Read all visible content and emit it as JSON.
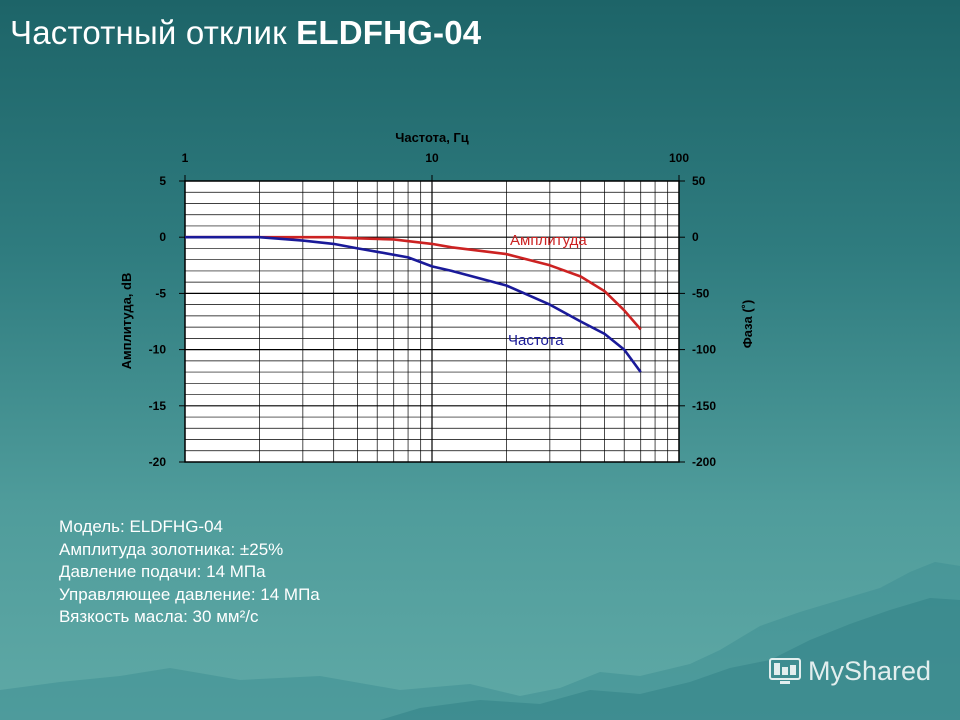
{
  "slide": {
    "title_prefix": "Частотный отклик",
    "title_model": "ELDFHG-04",
    "specs": [
      "Модель: ELDFHG-04",
      "Амплитуда золотника: ±25%",
      "Давление подачи: 14 МПа",
      "Управляющее давление: 14 МПа",
      "Вязкость масла: 30 мм²/с"
    ],
    "watermark": "MyShared"
  },
  "colors": {
    "amplitude": "#cc2222",
    "phase": "#1a1a99",
    "axis_text": "#000000",
    "plot_bg": "#ffffff"
  },
  "chart_data": {
    "type": "line",
    "title": "",
    "x_scale": "log",
    "xlabel": "Частота, Гц",
    "xlim": [
      1,
      100
    ],
    "x_ticks": [
      {
        "value": 1,
        "label": "1"
      },
      {
        "value": 10,
        "label": "10"
      },
      {
        "value": 100,
        "label": "100"
      }
    ],
    "ylabel_left": "Амплитуда, dB",
    "ylim_left": [
      -20,
      5
    ],
    "y_ticks_left": [
      {
        "value": 5,
        "label": "5"
      },
      {
        "value": 0,
        "label": "0"
      },
      {
        "value": -5,
        "label": "-5"
      },
      {
        "value": -10,
        "label": "-10"
      },
      {
        "value": -15,
        "label": "-15"
      },
      {
        "value": -20,
        "label": "-20"
      }
    ],
    "ylabel_right": "Фаза (˚)",
    "ylim_right": [
      -200,
      50
    ],
    "y_ticks_right": [
      {
        "value": 50,
        "label": "50"
      },
      {
        "value": 0,
        "label": "0"
      },
      {
        "value": -50,
        "label": "-50"
      },
      {
        "value": -100,
        "label": "-100"
      },
      {
        "value": -150,
        "label": "-150"
      },
      {
        "value": -200,
        "label": "-200"
      }
    ],
    "grid": true,
    "series": [
      {
        "name": "Амплитуда",
        "axis": "left",
        "color": "#cc2222",
        "points": [
          {
            "x": 1,
            "y": 0
          },
          {
            "x": 2.5,
            "y": 0
          },
          {
            "x": 4,
            "y": 0
          },
          {
            "x": 5,
            "y": -0.1
          },
          {
            "x": 7,
            "y": -0.2
          },
          {
            "x": 10,
            "y": -0.6
          },
          {
            "x": 12,
            "y": -0.9
          },
          {
            "x": 20,
            "y": -1.5
          },
          {
            "x": 30,
            "y": -2.5
          },
          {
            "x": 40,
            "y": -3.5
          },
          {
            "x": 50,
            "y": -4.8
          },
          {
            "x": 60,
            "y": -6.5
          },
          {
            "x": 70,
            "y": -8.2
          }
        ]
      },
      {
        "name": "Частота",
        "axis": "left",
        "color": "#1a1a99",
        "points": [
          {
            "x": 1,
            "y": 0
          },
          {
            "x": 2,
            "y": 0
          },
          {
            "x": 3,
            "y": -0.3
          },
          {
            "x": 4,
            "y": -0.6
          },
          {
            "x": 5,
            "y": -1.0
          },
          {
            "x": 6,
            "y": -1.3
          },
          {
            "x": 8,
            "y": -1.8
          },
          {
            "x": 10,
            "y": -2.6
          },
          {
            "x": 12,
            "y": -3.0
          },
          {
            "x": 20,
            "y": -4.3
          },
          {
            "x": 30,
            "y": -6.0
          },
          {
            "x": 40,
            "y": -7.5
          },
          {
            "x": 50,
            "y": -8.6
          },
          {
            "x": 60,
            "y": -10.0
          },
          {
            "x": 70,
            "y": -12.0
          }
        ]
      }
    ]
  }
}
